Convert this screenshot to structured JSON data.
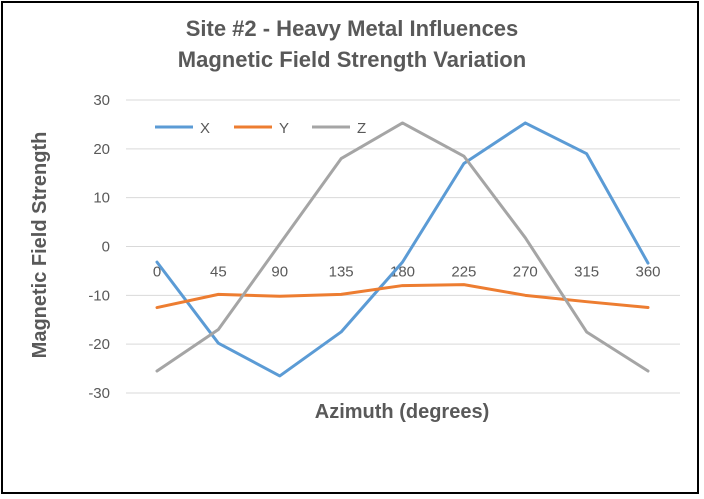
{
  "chart_data": {
    "type": "line",
    "title": "Site #2 - Heavy Metal Influences",
    "subtitle": "Magnetic Field Strength Variation",
    "xlabel": "Azimuth (degrees)",
    "ylabel": "Magnetic Field Strength",
    "x": [
      0,
      45,
      90,
      135,
      180,
      225,
      270,
      315,
      360
    ],
    "ylim": [
      -30,
      30
    ],
    "yticks": [
      -30,
      -20,
      -10,
      0,
      10,
      20,
      30
    ],
    "grid": true,
    "legend_position": "top-left",
    "series": [
      {
        "name": "X",
        "color": "#5B9BD5",
        "values": [
          -3.2,
          -19.8,
          -26.5,
          -17.5,
          -3.2,
          17.0,
          25.3,
          19.0,
          -3.4
        ]
      },
      {
        "name": "Y",
        "color": "#ED7D31",
        "values": [
          -12.5,
          -9.8,
          -10.2,
          -9.8,
          -8.0,
          -7.8,
          -10.0,
          -11.3,
          -12.5
        ]
      },
      {
        "name": "Z",
        "color": "#A5A5A5",
        "values": [
          -25.5,
          -17.0,
          0.5,
          18.0,
          25.3,
          18.5,
          1.8,
          -17.5,
          -25.5
        ]
      }
    ]
  }
}
